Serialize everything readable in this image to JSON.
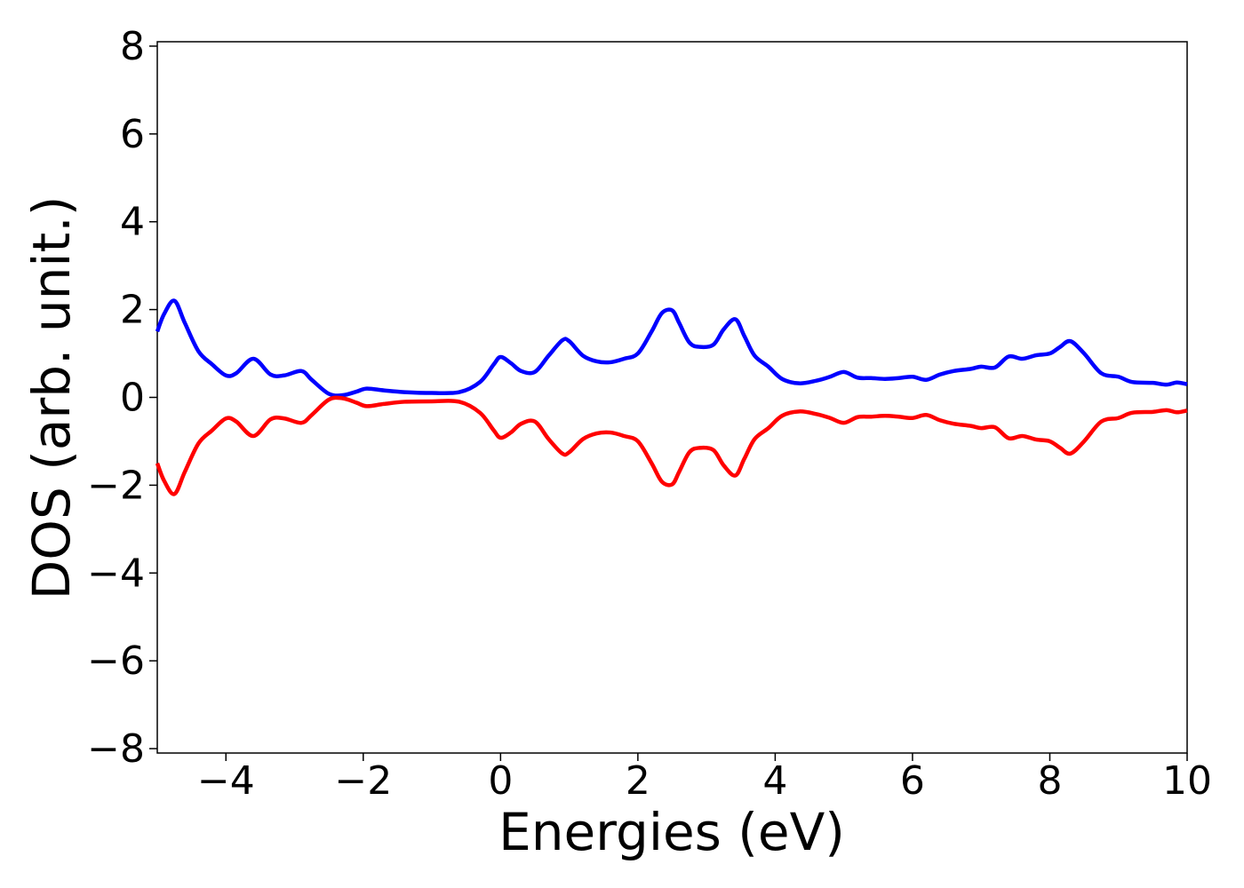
{
  "chart_data": {
    "type": "line",
    "title": "",
    "xlabel": "Energies (eV)",
    "ylabel": "DOS (arb. unit.)",
    "xlim": [
      -5,
      10
    ],
    "ylim": [
      -8.1,
      8.1
    ],
    "xticks": [
      -4,
      -2,
      0,
      2,
      4,
      6,
      8,
      10
    ],
    "yticks": [
      -8,
      -6,
      -4,
      -2,
      0,
      2,
      4,
      6,
      8
    ],
    "xtick_labels": [
      "−4",
      "−2",
      "0",
      "2",
      "4",
      "6",
      "8",
      "10"
    ],
    "ytick_labels": [
      "−8",
      "−6",
      "−4",
      "−2",
      "0",
      "2",
      "4",
      "6",
      "8"
    ],
    "grid": false,
    "legend": "none",
    "series": [
      {
        "color": "#0000ff",
        "x": [
          -5.0,
          -4.9,
          -4.75,
          -4.6,
          -4.4,
          -4.2,
          -4.0,
          -3.85,
          -3.6,
          -3.35,
          -3.15,
          -2.9,
          -2.75,
          -2.5,
          -2.3,
          -2.1,
          -1.95,
          -1.7,
          -1.4,
          -1.0,
          -0.6,
          -0.3,
          -0.1,
          0.0,
          0.15,
          0.3,
          0.5,
          0.7,
          0.9,
          1.0,
          1.2,
          1.4,
          1.6,
          1.8,
          2.0,
          2.2,
          2.35,
          2.5,
          2.6,
          2.75,
          2.9,
          3.1,
          3.25,
          3.42,
          3.55,
          3.7,
          3.9,
          4.1,
          4.35,
          4.6,
          4.8,
          5.0,
          5.2,
          5.4,
          5.6,
          5.8,
          6.0,
          6.2,
          6.4,
          6.6,
          6.85,
          7.0,
          7.2,
          7.4,
          7.6,
          7.8,
          8.0,
          8.15,
          8.3,
          8.5,
          8.75,
          9.0,
          9.2,
          9.5,
          9.7,
          9.85,
          10.0
        ],
        "y": [
          1.5,
          1.9,
          2.2,
          1.7,
          1.05,
          0.75,
          0.5,
          0.55,
          0.88,
          0.52,
          0.5,
          0.6,
          0.4,
          0.08,
          0.05,
          0.13,
          0.2,
          0.16,
          0.12,
          0.1,
          0.12,
          0.35,
          0.75,
          0.92,
          0.78,
          0.6,
          0.58,
          0.95,
          1.3,
          1.28,
          0.95,
          0.82,
          0.8,
          0.88,
          1.0,
          1.5,
          1.92,
          1.98,
          1.7,
          1.25,
          1.15,
          1.2,
          1.55,
          1.78,
          1.4,
          0.95,
          0.7,
          0.42,
          0.32,
          0.38,
          0.47,
          0.58,
          0.45,
          0.44,
          0.42,
          0.44,
          0.47,
          0.4,
          0.52,
          0.6,
          0.65,
          0.7,
          0.68,
          0.93,
          0.88,
          0.96,
          1.0,
          1.15,
          1.28,
          1.0,
          0.55,
          0.47,
          0.35,
          0.33,
          0.29,
          0.34,
          0.3
        ]
      },
      {
        "color": "#ff0000",
        "x": [
          -5.0,
          -4.9,
          -4.75,
          -4.6,
          -4.4,
          -4.2,
          -4.0,
          -3.85,
          -3.6,
          -3.35,
          -3.15,
          -2.9,
          -2.75,
          -2.5,
          -2.3,
          -2.1,
          -1.95,
          -1.7,
          -1.4,
          -1.0,
          -0.6,
          -0.3,
          -0.1,
          0.0,
          0.15,
          0.3,
          0.5,
          0.7,
          0.9,
          1.0,
          1.2,
          1.4,
          1.6,
          1.8,
          2.0,
          2.2,
          2.35,
          2.5,
          2.6,
          2.75,
          2.9,
          3.1,
          3.25,
          3.42,
          3.55,
          3.7,
          3.9,
          4.1,
          4.35,
          4.6,
          4.8,
          5.0,
          5.2,
          5.4,
          5.6,
          5.8,
          6.0,
          6.2,
          6.4,
          6.6,
          6.85,
          7.0,
          7.2,
          7.4,
          7.6,
          7.8,
          8.0,
          8.15,
          8.3,
          8.5,
          8.75,
          9.0,
          9.2,
          9.5,
          9.7,
          9.85,
          10.0
        ],
        "y": [
          -1.5,
          -1.9,
          -2.2,
          -1.7,
          -1.05,
          -0.75,
          -0.48,
          -0.55,
          -0.88,
          -0.5,
          -0.48,
          -0.58,
          -0.4,
          -0.05,
          -0.02,
          -0.12,
          -0.2,
          -0.15,
          -0.1,
          -0.09,
          -0.1,
          -0.35,
          -0.75,
          -0.92,
          -0.8,
          -0.6,
          -0.55,
          -0.95,
          -1.28,
          -1.25,
          -0.95,
          -0.82,
          -0.8,
          -0.88,
          -1.0,
          -1.5,
          -1.92,
          -1.98,
          -1.7,
          -1.25,
          -1.15,
          -1.2,
          -1.55,
          -1.78,
          -1.4,
          -0.95,
          -0.7,
          -0.42,
          -0.32,
          -0.38,
          -0.47,
          -0.58,
          -0.45,
          -0.44,
          -0.42,
          -0.44,
          -0.47,
          -0.4,
          -0.52,
          -0.6,
          -0.65,
          -0.7,
          -0.68,
          -0.93,
          -0.88,
          -0.96,
          -1.0,
          -1.15,
          -1.28,
          -1.0,
          -0.55,
          -0.47,
          -0.35,
          -0.33,
          -0.29,
          -0.34,
          -0.3
        ]
      }
    ]
  }
}
